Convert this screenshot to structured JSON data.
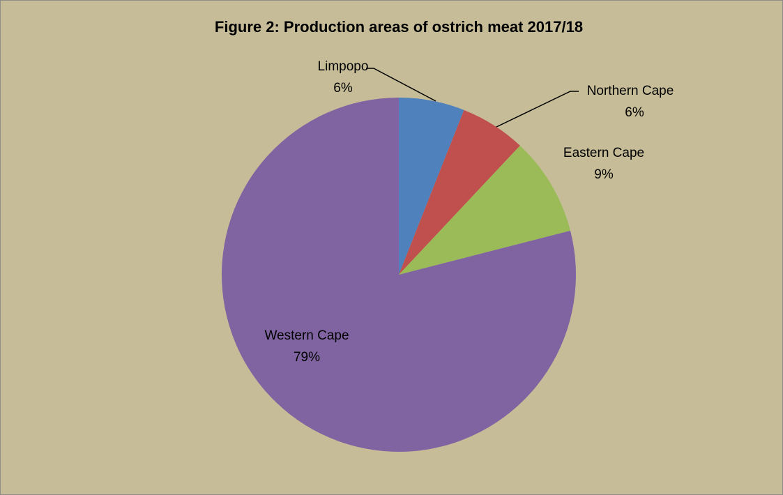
{
  "chart_data": {
    "type": "pie",
    "title": "Figure 2: Production areas of ostrich meat 2017/18",
    "categories": [
      "Limpopo",
      "Northern Cape",
      "Eastern Cape",
      "Western Cape"
    ],
    "values": [
      6,
      6,
      9,
      79
    ],
    "value_labels": [
      "6%",
      "6%",
      "9%",
      "79%"
    ],
    "colors": [
      "#4f81bd",
      "#c0504d",
      "#9bbb59",
      "#8064a2"
    ]
  }
}
